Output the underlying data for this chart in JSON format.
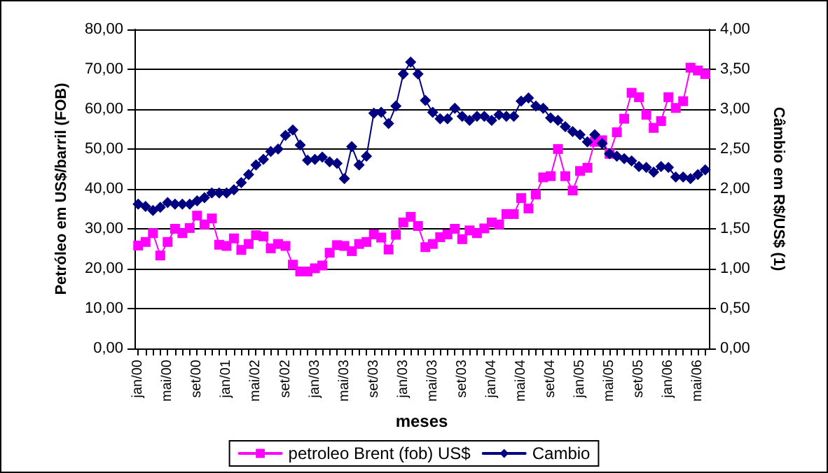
{
  "chart_data": {
    "type": "line",
    "xlabel": "meses",
    "ylabel": "Petróleo em US$/barril (FOB)",
    "y2label": "Câmbio em R$/US$ (1)",
    "categories": [
      "jan/00",
      null,
      null,
      null,
      "mai/00",
      null,
      null,
      null,
      "set/00",
      null,
      null,
      null,
      "jan/01",
      null,
      null,
      null,
      "mai/02",
      null,
      null,
      null,
      "set/02",
      null,
      null,
      null,
      "jan/03",
      null,
      null,
      null,
      "mai/03",
      null,
      null,
      null,
      "set/03",
      null,
      null,
      null,
      "jan/03",
      null,
      null,
      null,
      "mai/03",
      null,
      null,
      null,
      "set/03",
      null,
      null,
      null,
      "jan/04",
      null,
      null,
      null,
      "mai/04",
      null,
      null,
      null,
      "set/04",
      null,
      null,
      null,
      "jan/05",
      null,
      null,
      null,
      "mai/05",
      null,
      null,
      null,
      "set/05",
      null,
      null,
      null,
      "jan/06",
      null,
      null,
      null,
      "mai/06",
      null
    ],
    "series": [
      {
        "name": "petroleo Brent (fob) US$",
        "color": "#ff00ff",
        "marker": "square",
        "values": [
          25.8,
          26.7,
          28.9,
          23.3,
          26.7,
          30.0,
          28.9,
          30.2,
          33.3,
          31.1,
          32.6,
          26.0,
          25.7,
          27.6,
          24.7,
          26.2,
          28.4,
          28.1,
          25.1,
          26.2,
          25.7,
          21.0,
          19.3,
          19.3,
          20.1,
          20.8,
          24.0,
          25.9,
          25.7,
          24.4,
          26.2,
          26.7,
          28.6,
          27.8,
          24.8,
          28.5,
          31.6,
          33.0,
          30.7,
          25.4,
          26.2,
          27.9,
          28.6,
          30.0,
          27.4,
          29.6,
          28.9,
          30.1,
          31.6,
          31.1,
          33.7,
          33.7,
          37.7,
          35.1,
          38.6,
          42.9,
          43.2,
          50.0,
          43.2,
          39.6,
          44.5,
          45.3,
          51.8,
          52.2,
          48.8,
          54.2,
          57.6,
          64.1,
          63.0,
          58.6,
          55.3,
          57.0,
          63.0,
          60.3,
          62.0,
          70.4,
          69.7,
          68.8
        ]
      },
      {
        "name": "Cambio",
        "color": "#000080",
        "marker": "diamond",
        "axis": "y2",
        "values": [
          1.81,
          1.78,
          1.73,
          1.77,
          1.83,
          1.81,
          1.81,
          1.81,
          1.85,
          1.89,
          1.95,
          1.95,
          1.95,
          1.99,
          2.08,
          2.18,
          2.3,
          2.37,
          2.47,
          2.5,
          2.67,
          2.74,
          2.55,
          2.36,
          2.37,
          2.4,
          2.34,
          2.32,
          2.13,
          2.53,
          2.3,
          2.41,
          2.95,
          2.96,
          2.82,
          3.04,
          3.44,
          3.59,
          3.44,
          3.11,
          2.96,
          2.88,
          2.88,
          3.01,
          2.91,
          2.86,
          2.91,
          2.91,
          2.86,
          2.93,
          2.91,
          2.91,
          3.1,
          3.14,
          3.04,
          3.01,
          2.89,
          2.86,
          2.78,
          2.72,
          2.68,
          2.59,
          2.68,
          2.57,
          2.44,
          2.41,
          2.38,
          2.35,
          2.28,
          2.27,
          2.21,
          2.28,
          2.27,
          2.15,
          2.15,
          2.13,
          2.18,
          2.24
        ]
      }
    ],
    "ylim": [
      0,
      80
    ],
    "yticks": [
      {
        "value": 0,
        "label": "0,00"
      },
      {
        "value": 10,
        "label": "10,00"
      },
      {
        "value": 20,
        "label": "20,00"
      },
      {
        "value": 30,
        "label": "30,00"
      },
      {
        "value": 40,
        "label": "40,00"
      },
      {
        "value": 50,
        "label": "50,00"
      },
      {
        "value": 60,
        "label": "60,00"
      },
      {
        "value": 70,
        "label": "70,00"
      },
      {
        "value": 80,
        "label": "80,00"
      }
    ],
    "y2lim": [
      0,
      4
    ],
    "y2ticks": [
      {
        "value": 0,
        "label": "0,00"
      },
      {
        "value": 0.5,
        "label": "0,50"
      },
      {
        "value": 1,
        "label": "1,00"
      },
      {
        "value": 1.5,
        "label": "1,50"
      },
      {
        "value": 2,
        "label": "2,00"
      },
      {
        "value": 2.5,
        "label": "2,50"
      },
      {
        "value": 3,
        "label": "3,00"
      },
      {
        "value": 3.5,
        "label": "3,50"
      },
      {
        "value": 4,
        "label": "4,00"
      }
    ],
    "grid": "y",
    "legend": "bottom",
    "line_style": "solid"
  }
}
